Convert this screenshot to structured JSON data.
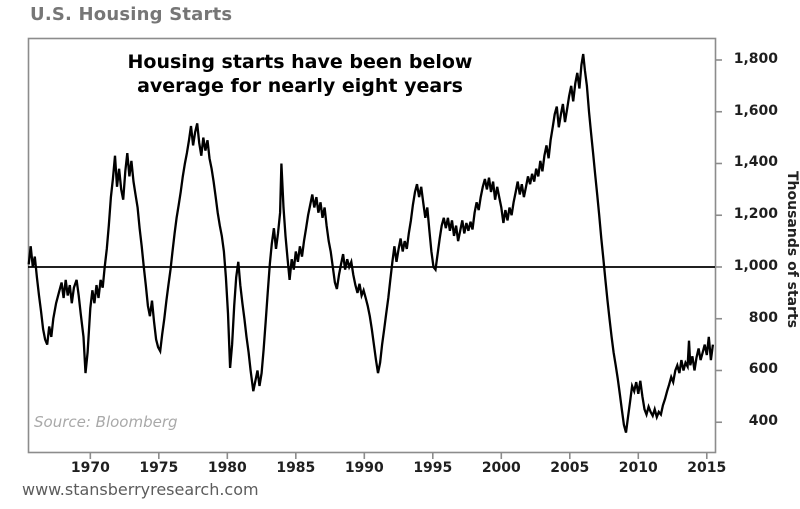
{
  "header": {
    "title": "U.S. Housing Starts"
  },
  "footer": {
    "url": "www.stansberryresearch.com"
  },
  "chart_data": {
    "type": "line",
    "title": "U.S. Housing Starts",
    "annotation": {
      "line1": "Housing starts have been below",
      "line2": "average for nearly eight years"
    },
    "source": "Source: Bloomberg",
    "ylabel": "Thousands of starts",
    "average_line": 1000,
    "grid": false,
    "x_range": [
      1965.45,
      2015.6
    ],
    "y_range": [
      285,
      1885
    ],
    "yticks": [
      {
        "label": "400",
        "value": 400
      },
      {
        "label": "600",
        "value": 600
      },
      {
        "label": "800",
        "value": 800
      },
      {
        "label": "1,000",
        "value": 1000
      },
      {
        "label": "1,200",
        "value": 1200
      },
      {
        "label": "1,400",
        "value": 1400
      },
      {
        "label": "1,600",
        "value": 1600
      },
      {
        "label": "1,800",
        "value": 1800
      }
    ],
    "xticks": [
      {
        "label": "1970",
        "value": 1970
      },
      {
        "label": "1975",
        "value": 1975
      },
      {
        "label": "1980",
        "value": 1980
      },
      {
        "label": "1985",
        "value": 1985
      },
      {
        "label": "1990",
        "value": 1990
      },
      {
        "label": "1995",
        "value": 1995
      },
      {
        "label": "2000",
        "value": 2000
      },
      {
        "label": "2005",
        "value": 2005
      },
      {
        "label": "2010",
        "value": 2010
      },
      {
        "label": "2015",
        "value": 2015
      }
    ],
    "colors": {
      "line": "#000000",
      "average_line": "#000000",
      "border": "#8c8c8c",
      "tick_mark": "#8c8c8c",
      "title": "#767676",
      "tick_labels": "#1f1f1f",
      "annotation": "#000000",
      "source": "#a9a9a9",
      "url": "#5c5c5c",
      "background": "#ffffff"
    },
    "points": [
      [
        1965.5,
        1010
      ],
      [
        1965.65,
        1080
      ],
      [
        1965.8,
        1000
      ],
      [
        1965.95,
        1040
      ],
      [
        1966.1,
        960
      ],
      [
        1966.25,
        890
      ],
      [
        1966.4,
        830
      ],
      [
        1966.55,
        760
      ],
      [
        1966.7,
        720
      ],
      [
        1966.85,
        700
      ],
      [
        1967.0,
        770
      ],
      [
        1967.15,
        730
      ],
      [
        1967.3,
        800
      ],
      [
        1967.5,
        860
      ],
      [
        1967.7,
        900
      ],
      [
        1967.9,
        940
      ],
      [
        1968.05,
        880
      ],
      [
        1968.2,
        950
      ],
      [
        1968.35,
        890
      ],
      [
        1968.5,
        930
      ],
      [
        1968.65,
        860
      ],
      [
        1968.8,
        920
      ],
      [
        1969.0,
        950
      ],
      [
        1969.15,
        890
      ],
      [
        1969.3,
        820
      ],
      [
        1969.5,
        730
      ],
      [
        1969.65,
        590
      ],
      [
        1969.8,
        670
      ],
      [
        1970.0,
        840
      ],
      [
        1970.15,
        910
      ],
      [
        1970.3,
        860
      ],
      [
        1970.45,
        930
      ],
      [
        1970.6,
        880
      ],
      [
        1970.75,
        950
      ],
      [
        1970.9,
        920
      ],
      [
        1971.05,
        1000
      ],
      [
        1971.2,
        1070
      ],
      [
        1971.35,
        1160
      ],
      [
        1971.5,
        1270
      ],
      [
        1971.65,
        1340
      ],
      [
        1971.8,
        1430
      ],
      [
        1971.95,
        1310
      ],
      [
        1972.1,
        1380
      ],
      [
        1972.25,
        1300
      ],
      [
        1972.4,
        1260
      ],
      [
        1972.55,
        1370
      ],
      [
        1972.7,
        1440
      ],
      [
        1972.85,
        1350
      ],
      [
        1973.0,
        1410
      ],
      [
        1973.15,
        1330
      ],
      [
        1973.3,
        1280
      ],
      [
        1973.45,
        1230
      ],
      [
        1973.6,
        1150
      ],
      [
        1973.75,
        1080
      ],
      [
        1973.9,
        1000
      ],
      [
        1974.05,
        930
      ],
      [
        1974.2,
        850
      ],
      [
        1974.35,
        810
      ],
      [
        1974.5,
        870
      ],
      [
        1974.65,
        790
      ],
      [
        1974.8,
        720
      ],
      [
        1974.95,
        690
      ],
      [
        1975.1,
        675
      ],
      [
        1975.25,
        740
      ],
      [
        1975.4,
        800
      ],
      [
        1975.55,
        870
      ],
      [
        1975.7,
        930
      ],
      [
        1975.85,
        990
      ],
      [
        1976.0,
        1060
      ],
      [
        1976.15,
        1130
      ],
      [
        1976.3,
        1190
      ],
      [
        1976.45,
        1240
      ],
      [
        1976.6,
        1290
      ],
      [
        1976.75,
        1350
      ],
      [
        1976.9,
        1400
      ],
      [
        1977.05,
        1440
      ],
      [
        1977.2,
        1490
      ],
      [
        1977.35,
        1545
      ],
      [
        1977.5,
        1470
      ],
      [
        1977.65,
        1520
      ],
      [
        1977.8,
        1555
      ],
      [
        1977.95,
        1480
      ],
      [
        1978.1,
        1430
      ],
      [
        1978.25,
        1500
      ],
      [
        1978.4,
        1450
      ],
      [
        1978.55,
        1490
      ],
      [
        1978.7,
        1420
      ],
      [
        1978.85,
        1380
      ],
      [
        1979.0,
        1330
      ],
      [
        1979.15,
        1270
      ],
      [
        1979.3,
        1210
      ],
      [
        1979.45,
        1160
      ],
      [
        1979.6,
        1120
      ],
      [
        1979.75,
        1060
      ],
      [
        1979.9,
        960
      ],
      [
        1980.05,
        820
      ],
      [
        1980.2,
        610
      ],
      [
        1980.35,
        700
      ],
      [
        1980.5,
        850
      ],
      [
        1980.65,
        960
      ],
      [
        1980.8,
        1020
      ],
      [
        1980.95,
        930
      ],
      [
        1981.1,
        860
      ],
      [
        1981.25,
        800
      ],
      [
        1981.4,
        730
      ],
      [
        1981.55,
        670
      ],
      [
        1981.7,
        600
      ],
      [
        1981.9,
        520
      ],
      [
        1982.05,
        560
      ],
      [
        1982.2,
        600
      ],
      [
        1982.35,
        540
      ],
      [
        1982.5,
        590
      ],
      [
        1982.65,
        680
      ],
      [
        1982.8,
        790
      ],
      [
        1982.95,
        900
      ],
      [
        1983.1,
        1010
      ],
      [
        1983.25,
        1090
      ],
      [
        1983.4,
        1150
      ],
      [
        1983.55,
        1070
      ],
      [
        1983.7,
        1130
      ],
      [
        1983.85,
        1210
      ],
      [
        1983.95,
        1400
      ],
      [
        1984.1,
        1230
      ],
      [
        1984.25,
        1120
      ],
      [
        1984.4,
        1030
      ],
      [
        1984.55,
        950
      ],
      [
        1984.7,
        1030
      ],
      [
        1984.85,
        990
      ],
      [
        1985.0,
        1060
      ],
      [
        1985.15,
        1020
      ],
      [
        1985.3,
        1080
      ],
      [
        1985.45,
        1040
      ],
      [
        1985.6,
        1100
      ],
      [
        1985.75,
        1150
      ],
      [
        1985.9,
        1200
      ],
      [
        1986.05,
        1240
      ],
      [
        1986.2,
        1280
      ],
      [
        1986.35,
        1230
      ],
      [
        1986.5,
        1270
      ],
      [
        1986.65,
        1210
      ],
      [
        1986.8,
        1250
      ],
      [
        1986.95,
        1190
      ],
      [
        1987.1,
        1230
      ],
      [
        1987.25,
        1160
      ],
      [
        1987.4,
        1100
      ],
      [
        1987.55,
        1060
      ],
      [
        1987.7,
        1000
      ],
      [
        1987.85,
        940
      ],
      [
        1988.0,
        915
      ],
      [
        1988.15,
        970
      ],
      [
        1988.3,
        1010
      ],
      [
        1988.45,
        1050
      ],
      [
        1988.6,
        990
      ],
      [
        1988.75,
        1030
      ],
      [
        1988.9,
        1000
      ],
      [
        1989.05,
        1020
      ],
      [
        1989.2,
        970
      ],
      [
        1989.35,
        930
      ],
      [
        1989.5,
        900
      ],
      [
        1989.65,
        935
      ],
      [
        1989.8,
        890
      ],
      [
        1989.95,
        910
      ],
      [
        1990.1,
        880
      ],
      [
        1990.25,
        850
      ],
      [
        1990.4,
        810
      ],
      [
        1990.55,
        760
      ],
      [
        1990.7,
        700
      ],
      [
        1990.85,
        640
      ],
      [
        1991.0,
        590
      ],
      [
        1991.15,
        630
      ],
      [
        1991.3,
        700
      ],
      [
        1991.45,
        760
      ],
      [
        1991.6,
        820
      ],
      [
        1991.75,
        880
      ],
      [
        1991.9,
        950
      ],
      [
        1992.05,
        1020
      ],
      [
        1992.2,
        1080
      ],
      [
        1992.35,
        1020
      ],
      [
        1992.5,
        1070
      ],
      [
        1992.65,
        1110
      ],
      [
        1992.8,
        1060
      ],
      [
        1992.95,
        1100
      ],
      [
        1993.1,
        1070
      ],
      [
        1993.25,
        1130
      ],
      [
        1993.4,
        1180
      ],
      [
        1993.55,
        1240
      ],
      [
        1993.7,
        1290
      ],
      [
        1993.85,
        1320
      ],
      [
        1994.0,
        1270
      ],
      [
        1994.15,
        1310
      ],
      [
        1994.3,
        1250
      ],
      [
        1994.45,
        1190
      ],
      [
        1994.6,
        1230
      ],
      [
        1994.75,
        1140
      ],
      [
        1994.9,
        1060
      ],
      [
        1995.05,
        1000
      ],
      [
        1995.2,
        990
      ],
      [
        1995.35,
        1050
      ],
      [
        1995.5,
        1110
      ],
      [
        1995.65,
        1160
      ],
      [
        1995.8,
        1190
      ],
      [
        1995.95,
        1150
      ],
      [
        1996.1,
        1190
      ],
      [
        1996.25,
        1140
      ],
      [
        1996.4,
        1180
      ],
      [
        1996.55,
        1120
      ],
      [
        1996.7,
        1160
      ],
      [
        1996.85,
        1100
      ],
      [
        1997.0,
        1140
      ],
      [
        1997.15,
        1180
      ],
      [
        1997.3,
        1130
      ],
      [
        1997.45,
        1170
      ],
      [
        1997.6,
        1140
      ],
      [
        1997.75,
        1175
      ],
      [
        1997.9,
        1145
      ],
      [
        1998.05,
        1210
      ],
      [
        1998.2,
        1250
      ],
      [
        1998.35,
        1220
      ],
      [
        1998.5,
        1270
      ],
      [
        1998.65,
        1310
      ],
      [
        1998.8,
        1340
      ],
      [
        1998.95,
        1300
      ],
      [
        1999.1,
        1345
      ],
      [
        1999.25,
        1290
      ],
      [
        1999.4,
        1330
      ],
      [
        1999.55,
        1260
      ],
      [
        1999.7,
        1310
      ],
      [
        1999.85,
        1270
      ],
      [
        2000.0,
        1230
      ],
      [
        2000.15,
        1170
      ],
      [
        2000.3,
        1220
      ],
      [
        2000.45,
        1180
      ],
      [
        2000.6,
        1230
      ],
      [
        2000.75,
        1200
      ],
      [
        2000.9,
        1250
      ],
      [
        2001.05,
        1290
      ],
      [
        2001.2,
        1330
      ],
      [
        2001.35,
        1280
      ],
      [
        2001.5,
        1320
      ],
      [
        2001.65,
        1270
      ],
      [
        2001.8,
        1310
      ],
      [
        2001.95,
        1350
      ],
      [
        2002.1,
        1320
      ],
      [
        2002.25,
        1360
      ],
      [
        2002.4,
        1330
      ],
      [
        2002.55,
        1380
      ],
      [
        2002.7,
        1350
      ],
      [
        2002.85,
        1410
      ],
      [
        2003.0,
        1370
      ],
      [
        2003.15,
        1430
      ],
      [
        2003.3,
        1470
      ],
      [
        2003.45,
        1420
      ],
      [
        2003.6,
        1490
      ],
      [
        2003.75,
        1540
      ],
      [
        2003.9,
        1590
      ],
      [
        2004.05,
        1620
      ],
      [
        2004.2,
        1540
      ],
      [
        2004.35,
        1590
      ],
      [
        2004.5,
        1630
      ],
      [
        2004.65,
        1560
      ],
      [
        2004.8,
        1610
      ],
      [
        2004.95,
        1660
      ],
      [
        2005.1,
        1700
      ],
      [
        2005.25,
        1640
      ],
      [
        2005.4,
        1710
      ],
      [
        2005.55,
        1750
      ],
      [
        2005.7,
        1690
      ],
      [
        2005.85,
        1780
      ],
      [
        2005.98,
        1823
      ],
      [
        2006.1,
        1760
      ],
      [
        2006.25,
        1700
      ],
      [
        2006.4,
        1600
      ],
      [
        2006.55,
        1520
      ],
      [
        2006.7,
        1440
      ],
      [
        2006.85,
        1360
      ],
      [
        2007.0,
        1280
      ],
      [
        2007.15,
        1200
      ],
      [
        2007.3,
        1110
      ],
      [
        2007.45,
        1030
      ],
      [
        2007.6,
        950
      ],
      [
        2007.75,
        870
      ],
      [
        2007.9,
        800
      ],
      [
        2008.05,
        730
      ],
      [
        2008.2,
        670
      ],
      [
        2008.35,
        620
      ],
      [
        2008.5,
        570
      ],
      [
        2008.65,
        510
      ],
      [
        2008.8,
        450
      ],
      [
        2008.95,
        390
      ],
      [
        2009.1,
        360
      ],
      [
        2009.25,
        420
      ],
      [
        2009.4,
        480
      ],
      [
        2009.55,
        540
      ],
      [
        2009.7,
        520
      ],
      [
        2009.85,
        555
      ],
      [
        2010.0,
        510
      ],
      [
        2010.15,
        560
      ],
      [
        2010.3,
        500
      ],
      [
        2010.45,
        450
      ],
      [
        2010.6,
        430
      ],
      [
        2010.75,
        460
      ],
      [
        2010.9,
        440
      ],
      [
        2011.05,
        425
      ],
      [
        2011.2,
        450
      ],
      [
        2011.35,
        420
      ],
      [
        2011.5,
        440
      ],
      [
        2011.65,
        430
      ],
      [
        2011.8,
        465
      ],
      [
        2011.95,
        490
      ],
      [
        2012.1,
        520
      ],
      [
        2012.25,
        545
      ],
      [
        2012.4,
        575
      ],
      [
        2012.55,
        555
      ],
      [
        2012.7,
        600
      ],
      [
        2012.85,
        620
      ],
      [
        2013.0,
        590
      ],
      [
        2013.15,
        640
      ],
      [
        2013.3,
        600
      ],
      [
        2013.45,
        630
      ],
      [
        2013.6,
        615
      ],
      [
        2013.7,
        715
      ],
      [
        2013.8,
        620
      ],
      [
        2013.95,
        655
      ],
      [
        2014.1,
        600
      ],
      [
        2014.25,
        650
      ],
      [
        2014.4,
        685
      ],
      [
        2014.55,
        640
      ],
      [
        2014.7,
        670
      ],
      [
        2014.85,
        700
      ],
      [
        2015.0,
        660
      ],
      [
        2015.15,
        730
      ],
      [
        2015.3,
        640
      ],
      [
        2015.45,
        700
      ]
    ]
  }
}
